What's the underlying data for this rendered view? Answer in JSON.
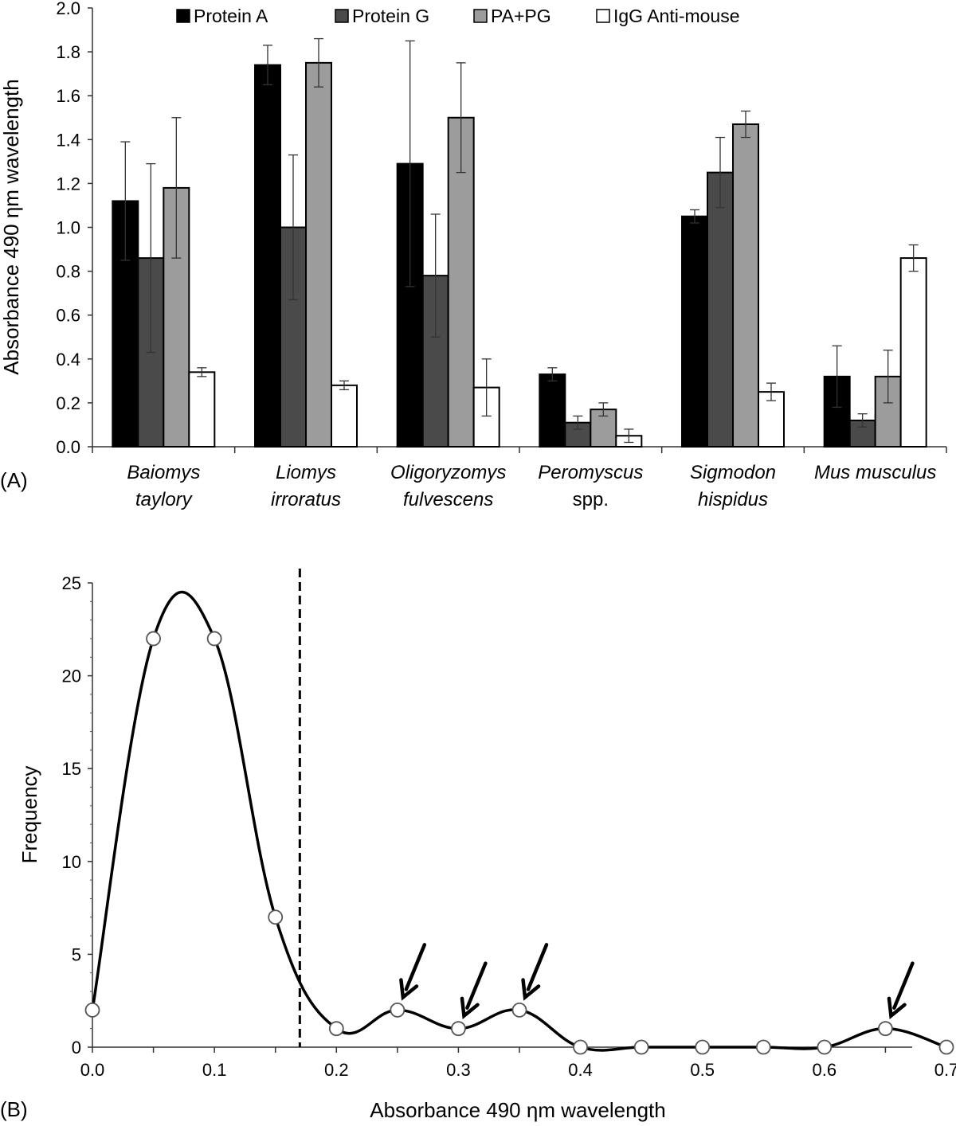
{
  "chart_data": [
    {
      "type": "bar",
      "panel_label": "(A)",
      "ylabel": "Absorbance 490 ηm wavelength",
      "xlabel": "",
      "ylim": [
        0,
        2.0
      ],
      "y_ticks": [
        "0.0",
        "0.2",
        "0.4",
        "0.6",
        "0.8",
        "1.0",
        "1.2",
        "1.4",
        "1.6",
        "1.8",
        "2.0"
      ],
      "grid": false,
      "legend_position": "top",
      "categories": [
        {
          "line1": "Baiomys",
          "line2": "taylory",
          "italic2": true
        },
        {
          "line1": "Liomys",
          "line2": "irroratus",
          "italic2": true
        },
        {
          "line1": "Oligoryzomys",
          "line2": "fulvescens",
          "italic2": true
        },
        {
          "line1": "Peromyscus",
          "line2": "spp.",
          "italic2": false
        },
        {
          "line1": "Sigmodon",
          "line2": "hispidus",
          "italic2": true
        },
        {
          "line1": "Mus musculus",
          "line2": "",
          "italic2": false
        }
      ],
      "series": [
        {
          "name": "Protein A",
          "color": "#000000",
          "values": [
            1.12,
            1.74,
            1.29,
            0.33,
            1.05,
            0.32
          ],
          "errors": [
            0.27,
            0.09,
            0.56,
            0.03,
            0.03,
            0.14
          ]
        },
        {
          "name": "Protein G",
          "color": "#4a4a4a",
          "values": [
            0.86,
            1.0,
            0.78,
            0.11,
            1.25,
            0.12
          ],
          "errors": [
            0.43,
            0.33,
            0.28,
            0.03,
            0.16,
            0.03
          ]
        },
        {
          "name": "PA+PG",
          "color": "#9c9c9c",
          "values": [
            1.18,
            1.75,
            1.5,
            0.17,
            1.47,
            0.32
          ],
          "errors": [
            0.32,
            0.11,
            0.25,
            0.03,
            0.06,
            0.12
          ]
        },
        {
          "name": "IgG Anti-mouse",
          "color": "#ffffff",
          "values": [
            0.34,
            0.28,
            0.27,
            0.05,
            0.25,
            0.86
          ],
          "errors": [
            0.02,
            0.02,
            0.13,
            0.03,
            0.04,
            0.06
          ]
        }
      ]
    },
    {
      "type": "line",
      "panel_label": "(B)",
      "xlabel": "Absorbance 490 ηm wavelength",
      "ylabel": "Frequency",
      "xlim": [
        0,
        0.7
      ],
      "ylim": [
        0,
        25
      ],
      "x_ticks": [
        "0.0",
        "0.1",
        "0.2",
        "0.3",
        "0.4",
        "0.5",
        "0.6",
        "0.7"
      ],
      "y_ticks": [
        "0",
        "5",
        "10",
        "15",
        "20",
        "25"
      ],
      "grid": false,
      "smooth": true,
      "series": [
        {
          "name": "Frequency",
          "x": [
            0.0,
            0.05,
            0.1,
            0.15,
            0.2,
            0.25,
            0.3,
            0.35,
            0.4,
            0.45,
            0.5,
            0.55,
            0.6,
            0.65,
            0.7
          ],
          "y": [
            2,
            22,
            22,
            7,
            1,
            2,
            1,
            2,
            0,
            0,
            0,
            0,
            0,
            1,
            0
          ]
        }
      ],
      "cutoff_x": 0.17,
      "arrow_points_x": [
        0.25,
        0.3,
        0.35,
        0.65
      ]
    }
  ]
}
